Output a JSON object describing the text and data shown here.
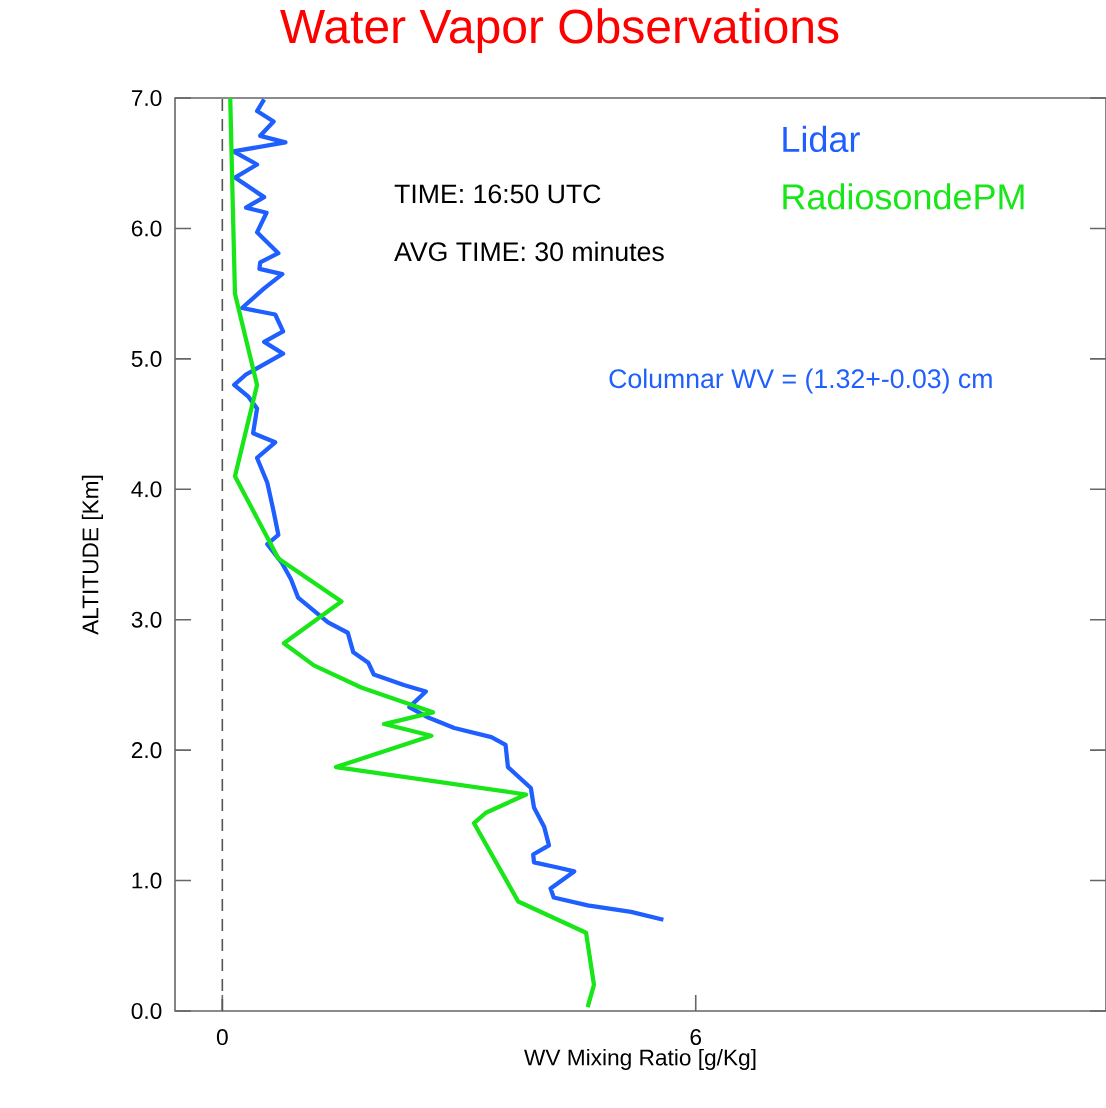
{
  "chart_data": {
    "type": "line",
    "title": "Water Vapor Observations",
    "xlabel": "WV Mixing Ratio [g/Kg]",
    "ylabel": "ALTITUDE [Km]",
    "xlim": [
      -0.6,
      11.2
    ],
    "xticks": [
      0,
      6
    ],
    "ylim": [
      0,
      7
    ],
    "yticks": [
      {
        "value": 0,
        "label": "0.0"
      },
      {
        "value": 1,
        "label": "1.0"
      },
      {
        "value": 2,
        "label": "2.0"
      },
      {
        "value": 3,
        "label": "3.0"
      },
      {
        "value": 4,
        "label": "4.0"
      },
      {
        "value": 5,
        "label": "5.0"
      },
      {
        "value": 6,
        "label": "6.0"
      },
      {
        "value": 7,
        "label": "7.0"
      }
    ],
    "legend": "top right",
    "grid": false,
    "line_style": "solid",
    "marker": "none",
    "ref_lines": [
      {
        "axis": "x",
        "value": 0,
        "color": "#555555",
        "line_style": "dashed"
      }
    ],
    "annotations": [
      "TIME: 16:50 UTC",
      "AVG TIME: 30 minutes",
      "Columnar WV = (1.32+-0.03) cm"
    ],
    "series": [
      {
        "name": "Lidar",
        "color": "#1f5fff",
        "x": [
          5.59,
          5.18,
          4.63,
          4.2,
          4.16,
          4.46,
          4.25,
          3.95,
          3.94,
          4.14,
          4.08,
          3.95,
          3.91,
          3.62,
          3.59,
          3.41,
          2.94,
          2.61,
          2.37,
          2.58,
          2.3,
          1.92,
          1.85,
          1.66,
          1.59,
          1.34,
          0.96,
          0.87,
          0.75,
          0.57,
          0.71,
          0.65,
          0.57,
          0.44,
          0.67,
          0.39,
          0.44,
          0.33,
          0.15,
          0.3,
          0.77,
          0.53,
          0.77,
          0.67,
          0.25,
          0.53,
          0.76,
          0.47,
          0.48,
          0.71,
          0.44,
          0.56,
          0.3,
          0.53,
          0.16,
          0.44,
          0.14,
          0.8,
          0.48,
          0.65,
          0.44,
          0.53
        ],
        "values": [
          0.7,
          0.76,
          0.81,
          0.87,
          0.94,
          1.07,
          1.1,
          1.14,
          1.2,
          1.27,
          1.41,
          1.56,
          1.71,
          1.87,
          2.04,
          2.1,
          2.17,
          2.25,
          2.33,
          2.45,
          2.5,
          2.58,
          2.67,
          2.75,
          2.9,
          2.98,
          3.17,
          3.31,
          3.44,
          3.58,
          3.65,
          3.83,
          4.05,
          4.24,
          4.36,
          4.43,
          4.62,
          4.71,
          4.8,
          4.88,
          5.04,
          5.13,
          5.21,
          5.34,
          5.39,
          5.54,
          5.65,
          5.69,
          5.74,
          5.81,
          5.97,
          6.12,
          6.16,
          6.24,
          6.39,
          6.49,
          6.59,
          6.66,
          6.71,
          6.82,
          6.9,
          6.99
        ]
      },
      {
        "name": "RadiosondePM",
        "color": "#19e619",
        "x": [
          4.63,
          4.71,
          4.61,
          3.75,
          3.19,
          3.34,
          3.85,
          1.44,
          2.65,
          2.05,
          2.67,
          1.76,
          1.16,
          0.78,
          1.51,
          0.71,
          0.16,
          0.44,
          0.16,
          0.13,
          0.1
        ],
        "values": [
          0.03,
          0.2,
          0.6,
          0.84,
          1.44,
          1.52,
          1.66,
          1.87,
          2.11,
          2.2,
          2.29,
          2.48,
          2.65,
          2.82,
          3.14,
          3.47,
          4.1,
          4.8,
          5.5,
          6.24,
          7.0
        ]
      }
    ]
  }
}
